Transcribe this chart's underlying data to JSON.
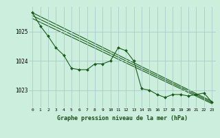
{
  "title": "Graphe pression niveau de la mer (hPa)",
  "bg_color": "#cceedd",
  "grid_color": "#aacccc",
  "line_color": "#1a5c1a",
  "marker_color": "#1a5c1a",
  "xlim": [
    -0.5,
    23.5
  ],
  "ylim": [
    1022.4,
    1025.85
  ],
  "yticks": [
    1023,
    1024,
    1025
  ],
  "xticks": [
    0,
    1,
    2,
    3,
    4,
    5,
    6,
    7,
    8,
    9,
    10,
    11,
    12,
    13,
    14,
    15,
    16,
    17,
    18,
    19,
    20,
    21,
    22,
    23
  ],
  "series1": [
    1025.65,
    1025.2,
    1024.85,
    1024.45,
    1024.2,
    1023.75,
    1023.7,
    1023.7,
    1023.9,
    1023.9,
    1024.0,
    1024.45,
    1024.35,
    1024.0,
    1023.05,
    1023.0,
    1022.85,
    1022.75,
    1022.85,
    1022.85,
    1022.8,
    1022.85,
    1022.9,
    1022.6
  ],
  "trend_lines": [
    [
      1025.65,
      1022.62
    ],
    [
      1025.55,
      1022.58
    ],
    [
      1025.45,
      1022.54
    ]
  ]
}
